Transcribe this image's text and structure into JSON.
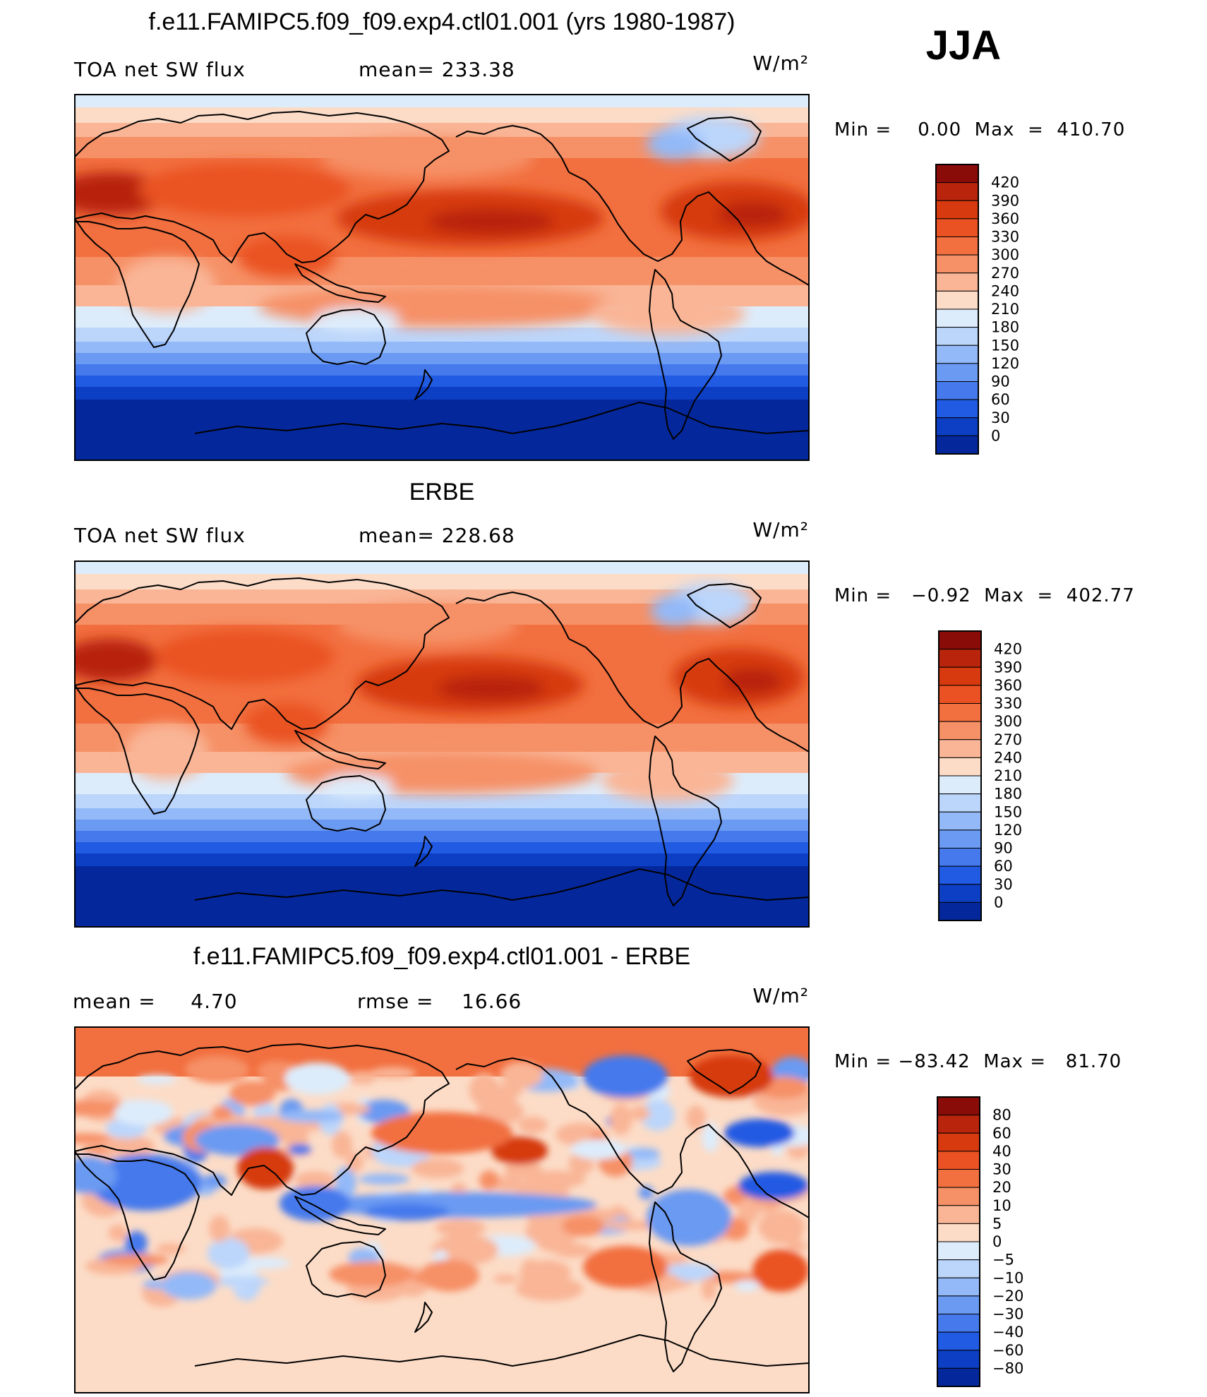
{
  "season": "JJA",
  "panels": [
    {
      "id": "model",
      "title": "f.e11.FAMIPC5.f09_f09.exp4.ctl01.001 (yrs 1980-1987)",
      "left_label": "TOA net SW flux",
      "stat1": "mean=  233.38",
      "stat2": "",
      "units": "W/m²",
      "minmax": "Min =    0.00  Max  =  410.70",
      "field": "full"
    },
    {
      "id": "obs",
      "title": "ERBE",
      "left_label": "TOA net SW flux",
      "stat1": "mean=  228.68",
      "stat2": "",
      "units": "W/m²",
      "minmax": "Min =   −0.92  Max  =  402.77",
      "field": "full_obs"
    },
    {
      "id": "diff",
      "title": "f.e11.FAMIPC5.f09_f09.exp4.ctl01.001 - ERBE",
      "left_label": "mean =     4.70",
      "stat1": "rmse =    16.66",
      "stat2": "",
      "units": "W/m²",
      "minmax": "Min = −83.42  Max =   81.70",
      "field": "diff"
    }
  ],
  "colorbars": {
    "full": {
      "labels": [
        "420",
        "390",
        "360",
        "330",
        "300",
        "270",
        "240",
        "210",
        "180",
        "150",
        "120",
        "90",
        "60",
        "30",
        "0"
      ],
      "colors": [
        "#8a0c09",
        "#b8240c",
        "#d63a0e",
        "#ea5223",
        "#f26f3f",
        "#f69066",
        "#f9b596",
        "#fcdcc7",
        "#ddecfb",
        "#bcd6fb",
        "#93b9f8",
        "#6b9af2",
        "#4579ec",
        "#215ae3",
        "#0d3fc4",
        "#04289c"
      ]
    },
    "diff": {
      "labels": [
        "80",
        "60",
        "40",
        "30",
        "20",
        "10",
        "5",
        "0",
        "−5",
        "−10",
        "−20",
        "−30",
        "−40",
        "−60",
        "−80"
      ],
      "colors": [
        "#8a0c09",
        "#b8240c",
        "#d63a0e",
        "#ea5223",
        "#f26f3f",
        "#f69066",
        "#f9b596",
        "#fcdcc7",
        "#ddecfb",
        "#bcd6fb",
        "#93b9f8",
        "#6b9af2",
        "#4579ec",
        "#215ae3",
        "#0d3fc4",
        "#04289c"
      ]
    }
  }
}
